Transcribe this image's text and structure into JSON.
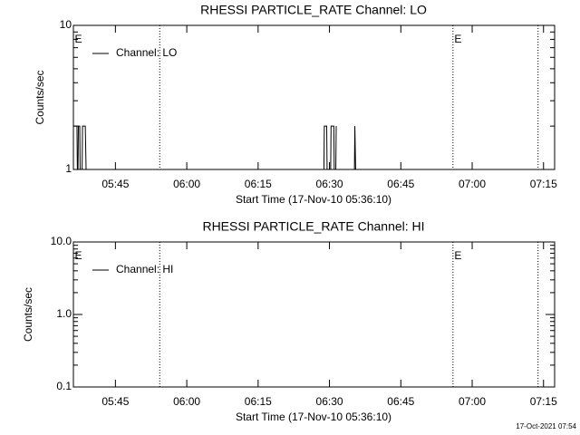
{
  "chart_data": [
    {
      "type": "line",
      "title": "RHESSI PARTICLE_RATE Channel: LO",
      "xlabel": "Start Time (17-Nov-10 05:36:10)",
      "ylabel": "Counts/sec",
      "log_y": true,
      "ylim": [
        1,
        10
      ],
      "yticks": [
        1,
        10
      ],
      "yminorticks": [
        2,
        3,
        4,
        5,
        6,
        7,
        8,
        9
      ],
      "xlim": [
        0,
        6070
      ],
      "xticks": [
        {
          "value": 530,
          "label": "05:45"
        },
        {
          "value": 1430,
          "label": "06:00"
        },
        {
          "value": 2330,
          "label": "06:15"
        },
        {
          "value": 3230,
          "label": "06:30"
        },
        {
          "value": 4130,
          "label": "06:45"
        },
        {
          "value": 5030,
          "label": "07:00"
        },
        {
          "value": 5930,
          "label": "07:15"
        }
      ],
      "vlines": [
        1089,
        4788,
        5861
      ],
      "annotations": [
        {
          "text": "E",
          "x": 17
        },
        {
          "text": "E",
          "x": 4805
        }
      ],
      "legend": "upper left",
      "series": [
        {
          "name": "Channel: LO",
          "color": "#000000",
          "x": [
            0,
            45,
            50,
            58,
            63,
            80,
            85,
            110,
            115,
            150,
            160,
            1000,
            3160,
            3165,
            3195,
            3200,
            3245,
            3250,
            3285,
            3290,
            3310,
            3315,
            3400,
            3545,
            3550,
            3560
          ],
          "values": [
            2,
            2,
            1,
            1,
            2,
            2,
            1,
            1,
            2,
            2,
            1,
            null,
            1,
            2,
            2,
            1,
            1,
            2,
            2,
            1,
            1,
            2,
            null,
            1,
            2,
            1
          ]
        }
      ]
    },
    {
      "type": "line",
      "title": "RHESSI PARTICLE_RATE Channel: HI",
      "xlabel": "Start Time (17-Nov-10 05:36:10)",
      "ylabel": "Counts/sec",
      "log_y": true,
      "ylim": [
        0.1,
        10
      ],
      "yticks": [
        {
          "value": 0.1,
          "label": "0.1"
        },
        {
          "value": 1,
          "label": "1.0"
        },
        {
          "value": 10,
          "label": "10.0"
        }
      ],
      "yminorticks": [
        0.2,
        0.3,
        0.4,
        0.5,
        0.6,
        0.7,
        0.8,
        0.9,
        2,
        3,
        4,
        5,
        6,
        7,
        8,
        9
      ],
      "xlim": [
        0,
        6070
      ],
      "xticks": [
        {
          "value": 530,
          "label": "05:45"
        },
        {
          "value": 1430,
          "label": "06:00"
        },
        {
          "value": 2330,
          "label": "06:15"
        },
        {
          "value": 3230,
          "label": "06:30"
        },
        {
          "value": 4130,
          "label": "06:45"
        },
        {
          "value": 5030,
          "label": "07:00"
        },
        {
          "value": 5930,
          "label": "07:15"
        }
      ],
      "vlines": [
        1089,
        4788,
        5861
      ],
      "annotations": [
        {
          "text": "E",
          "x": 17
        },
        {
          "text": "E",
          "x": 4805
        }
      ],
      "legend": "upper left",
      "series": [
        {
          "name": "Channel: HI",
          "color": "#000000",
          "x": [],
          "values": []
        }
      ]
    }
  ],
  "footer": "17-Oct-2021 07:54"
}
